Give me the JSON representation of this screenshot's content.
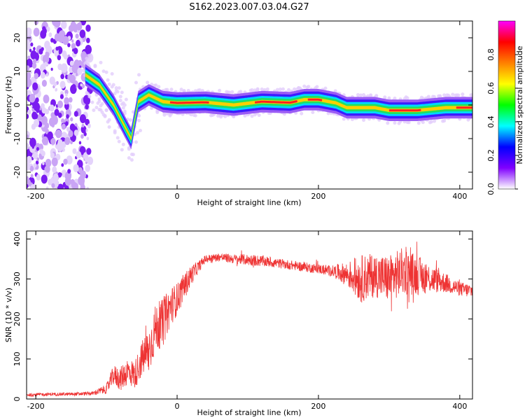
{
  "title": "S162.2023.007.03.04.G27",
  "chart_data": [
    {
      "type": "heatmap",
      "xlabel": "Height of straight line (km)",
      "ylabel": "Frequency (Hz)",
      "xlim": [
        -213,
        418
      ],
      "ylim": [
        -25,
        25
      ],
      "xticks": [
        -200,
        0,
        200,
        400
      ],
      "yticks": [
        -20,
        -10,
        0,
        10,
        20
      ],
      "ridge": [
        {
          "x": -130,
          "y": 9
        },
        {
          "x": -110,
          "y": 6
        },
        {
          "x": -90,
          "y": 0
        },
        {
          "x": -75,
          "y": -6
        },
        {
          "x": -65,
          "y": -10
        },
        {
          "x": -55,
          "y": 1
        },
        {
          "x": -40,
          "y": 3
        },
        {
          "x": -20,
          "y": 1
        },
        {
          "x": 0,
          "y": 0.6
        },
        {
          "x": 40,
          "y": 0.8
        },
        {
          "x": 80,
          "y": 0
        },
        {
          "x": 120,
          "y": 1
        },
        {
          "x": 160,
          "y": 0.7
        },
        {
          "x": 180,
          "y": 1.6
        },
        {
          "x": 200,
          "y": 1.6
        },
        {
          "x": 225,
          "y": 0.6
        },
        {
          "x": 240,
          "y": -0.8
        },
        {
          "x": 280,
          "y": -0.8
        },
        {
          "x": 300,
          "y": -1.6
        },
        {
          "x": 340,
          "y": -1.6
        },
        {
          "x": 380,
          "y": -0.8
        },
        {
          "x": 418,
          "y": -0.8
        }
      ],
      "colorbar": {
        "label": "Normalized spectral amplitude",
        "range": [
          0,
          1
        ],
        "ticks": [
          "0.0",
          "0.2",
          "0.4",
          "0.6",
          "0.8"
        ],
        "colors": [
          "#ffffff",
          "#8000ff",
          "#0000ff",
          "#00ffff",
          "#00ff00",
          "#ffff00",
          "#ff8000",
          "#ff0000",
          "#ff00ff"
        ]
      }
    },
    {
      "type": "line",
      "xlabel": "Height of straight line (km)",
      "ylabel": "SNR (10 * v/v)",
      "xlim": [
        -213,
        418
      ],
      "ylim": [
        0,
        420
      ],
      "xticks": [
        -200,
        0,
        200,
        400
      ],
      "yticks": [
        0,
        100,
        200,
        300,
        400
      ],
      "color": "#ee3333",
      "series": [
        {
          "x": [
            -213,
            -180,
            -150,
            -120,
            -100,
            -90,
            -80,
            -70,
            -60,
            -50,
            -40,
            -30,
            -20,
            -10,
            0,
            10,
            20,
            30,
            40,
            60,
            80,
            100,
            120,
            140,
            160,
            180,
            200,
            220,
            240,
            260,
            280,
            300,
            320,
            340,
            360,
            380,
            400,
            418
          ],
          "y": [
            10,
            12,
            12,
            14,
            25,
            60,
            50,
            70,
            60,
            100,
            120,
            180,
            190,
            230,
            250,
            280,
            310,
            330,
            350,
            355,
            350,
            348,
            345,
            340,
            335,
            330,
            325,
            320,
            312,
            300,
            310,
            300,
            320,
            310,
            300,
            290,
            275,
            270
          ],
          "noise": [
            4,
            4,
            4,
            5,
            12,
            25,
            30,
            35,
            35,
            45,
            60,
            60,
            60,
            50,
            40,
            35,
            25,
            15,
            10,
            10,
            12,
            14,
            14,
            12,
            12,
            12,
            12,
            14,
            30,
            60,
            55,
            60,
            60,
            50,
            35,
            25,
            18,
            18
          ]
        }
      ]
    }
  ]
}
